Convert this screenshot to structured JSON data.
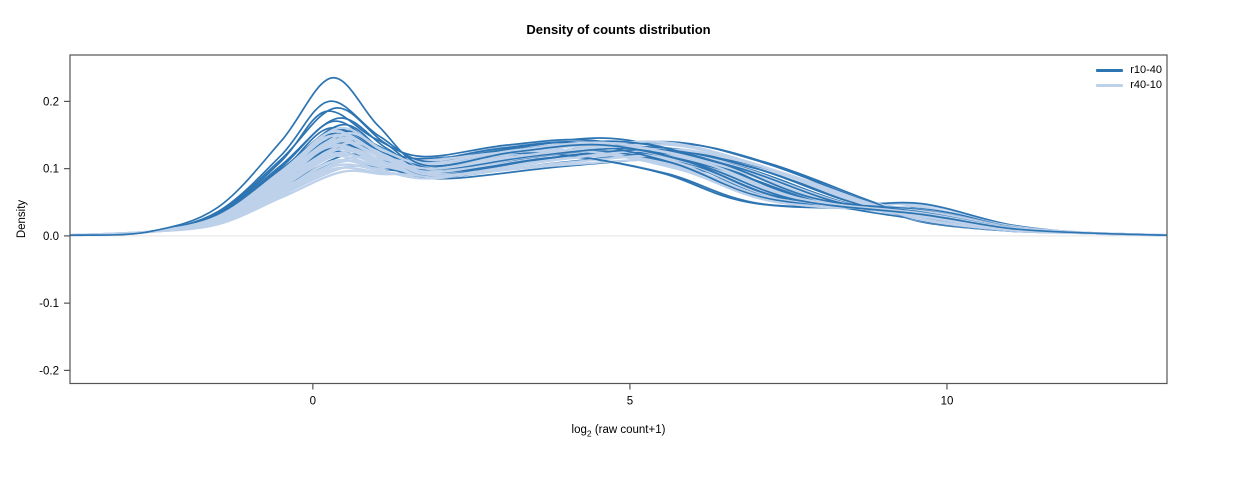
{
  "chart_data": {
    "type": "line",
    "subtype": "density-curves",
    "title": "Density of counts distribution",
    "xlabel": "log2 (raw count+1)",
    "xlabel_parts": {
      "base": "log",
      "sub": "2",
      "rest": " (raw count+1)"
    },
    "ylabel": "Density",
    "xlim": [
      -3.83,
      13.47
    ],
    "ylim": [
      -0.2195,
      0.269
    ],
    "xticks": [
      {
        "v": 0,
        "label": "0"
      },
      {
        "v": 5,
        "label": "5"
      },
      {
        "v": 10,
        "label": "10"
      }
    ],
    "yticks": [
      {
        "v": -0.2,
        "label": "-0.2"
      },
      {
        "v": -0.1,
        "label": "-0.1"
      },
      {
        "v": 0.0,
        "label": "0.0"
      },
      {
        "v": 0.1,
        "label": "0.1"
      },
      {
        "v": 0.2,
        "label": "0.2"
      }
    ],
    "grid": false,
    "zero_line": {
      "y": 0,
      "color": "#e3e3e3"
    },
    "box_color": "#555555",
    "legend": {
      "position": "top-right",
      "entries": [
        {
          "label": "r10-40",
          "color": "#2d74b2"
        },
        {
          "label": "r40-10",
          "color": "#bdd1ea"
        }
      ]
    },
    "curve_param_names": [
      "peak1_height",
      "peak1_x",
      "valley_height",
      "peak2_height",
      "peak2_x",
      "tail_height_at_x10"
    ],
    "series": [
      {
        "name": "r10-40",
        "color": "#2d74b2",
        "stroke_width": 1.7,
        "curves": [
          [
            0.235,
            0.3,
            0.105,
            0.135,
            4.6,
            0.02
          ],
          [
            0.2,
            0.25,
            0.11,
            0.14,
            4.9,
            0.022
          ],
          [
            0.19,
            0.35,
            0.1,
            0.13,
            5.2,
            0.018
          ],
          [
            0.185,
            0.2,
            0.118,
            0.142,
            4.4,
            0.024
          ],
          [
            0.175,
            0.4,
            0.095,
            0.128,
            5.5,
            0.016
          ],
          [
            0.17,
            0.3,
            0.112,
            0.138,
            4.2,
            0.021
          ],
          [
            0.165,
            0.45,
            0.09,
            0.125,
            5.0,
            0.015
          ],
          [
            0.16,
            0.25,
            0.108,
            0.145,
            4.7,
            0.023
          ],
          [
            0.158,
            0.35,
            0.098,
            0.132,
            5.4,
            0.017
          ],
          [
            0.155,
            0.5,
            0.115,
            0.12,
            4.0,
            0.025
          ],
          [
            0.152,
            0.3,
            0.092,
            0.14,
            5.6,
            0.014
          ],
          [
            0.15,
            0.2,
            0.105,
            0.135,
            4.5,
            0.02
          ],
          [
            0.148,
            0.4,
            0.1,
            0.128,
            5.1,
            0.019
          ],
          [
            0.145,
            0.35,
            0.11,
            0.142,
            4.3,
            0.022
          ],
          [
            0.142,
            0.25,
            0.088,
            0.122,
            5.8,
            0.013
          ],
          [
            0.14,
            0.45,
            0.102,
            0.136,
            4.8,
            0.021
          ],
          [
            0.138,
            0.3,
            0.095,
            0.13,
            5.3,
            0.016
          ],
          [
            0.135,
            0.55,
            0.112,
            0.118,
            4.1,
            0.024
          ],
          [
            0.132,
            0.35,
            0.09,
            0.138,
            5.7,
            0.015
          ],
          [
            0.13,
            0.25,
            0.106,
            0.126,
            4.6,
            0.02
          ],
          [
            0.128,
            0.4,
            0.098,
            0.134,
            5.0,
            0.018
          ],
          [
            0.125,
            0.3,
            0.085,
            0.115,
            6.0,
            0.026
          ],
          [
            0.12,
            0.5,
            0.108,
            0.14,
            4.4,
            0.022
          ],
          [
            0.11,
            0.4,
            0.096,
            0.124,
            5.2,
            0.03
          ]
        ]
      },
      {
        "name": "r40-10",
        "color": "#bdd1ea",
        "stroke_width": 2.3,
        "curves": [
          [
            0.16,
            0.4,
            0.108,
            0.138,
            4.7,
            0.021
          ],
          [
            0.155,
            0.3,
            0.1,
            0.132,
            5.0,
            0.018
          ],
          [
            0.152,
            0.5,
            0.112,
            0.126,
            4.3,
            0.023
          ],
          [
            0.15,
            0.35,
            0.095,
            0.14,
            5.4,
            0.016
          ],
          [
            0.148,
            0.25,
            0.105,
            0.134,
            4.6,
            0.02
          ],
          [
            0.145,
            0.45,
            0.09,
            0.128,
            5.7,
            0.015
          ],
          [
            0.142,
            0.3,
            0.11,
            0.142,
            4.2,
            0.024
          ],
          [
            0.14,
            0.4,
            0.098,
            0.13,
            5.1,
            0.018
          ],
          [
            0.138,
            0.55,
            0.104,
            0.122,
            4.5,
            0.022
          ],
          [
            0.135,
            0.3,
            0.092,
            0.136,
            5.5,
            0.016
          ],
          [
            0.132,
            0.25,
            0.108,
            0.128,
            4.8,
            0.021
          ],
          [
            0.13,
            0.45,
            0.096,
            0.132,
            5.2,
            0.017
          ],
          [
            0.128,
            0.35,
            0.102,
            0.138,
            4.4,
            0.023
          ],
          [
            0.125,
            0.5,
            0.088,
            0.12,
            5.8,
            0.014
          ],
          [
            0.122,
            0.3,
            0.106,
            0.134,
            4.7,
            0.02
          ],
          [
            0.12,
            0.4,
            0.094,
            0.126,
            5.3,
            0.017
          ],
          [
            0.118,
            0.25,
            0.1,
            0.14,
            4.9,
            0.019
          ],
          [
            0.115,
            0.55,
            0.11,
            0.118,
            4.1,
            0.025
          ],
          [
            0.112,
            0.35,
            0.086,
            0.13,
            5.6,
            0.015
          ],
          [
            0.11,
            0.45,
            0.104,
            0.124,
            4.5,
            0.021
          ],
          [
            0.105,
            0.4,
            0.09,
            0.114,
            6.0,
            0.027
          ],
          [
            0.102,
            0.5,
            0.106,
            0.132,
            4.3,
            0.022
          ],
          [
            0.1,
            0.35,
            0.094,
            0.122,
            5.4,
            0.016
          ],
          [
            0.095,
            0.45,
            0.096,
            0.118,
            5.1,
            0.029
          ]
        ]
      }
    ]
  }
}
